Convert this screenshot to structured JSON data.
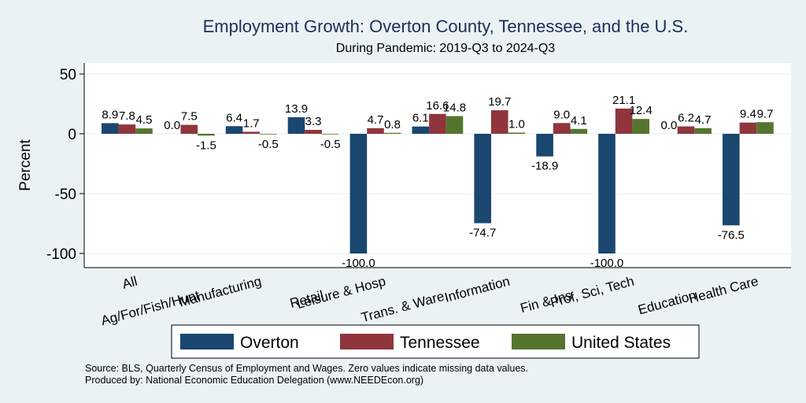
{
  "chart_data": {
    "type": "bar",
    "title": "Employment Growth: Overton County, Tennessee, and the U.S.",
    "subtitle": "During Pandemic: 2019-Q3 to 2024-Q3",
    "xlabel": "",
    "ylabel": "Percent",
    "ylim": [
      -110,
      60
    ],
    "yticks": [
      50,
      0,
      -50,
      -100
    ],
    "ytick_labels": [
      "50",
      "0",
      "-50",
      "-100"
    ],
    "grid": true,
    "legend_position": "bottom",
    "categories": [
      "All",
      "Ag/For/Fish/Hunt",
      "Manufacturing",
      "Retail",
      "Leisure & Hosp",
      "Trans. & Ware.",
      "Information",
      "Fin & Ins",
      "Prof, Sci, Tech",
      "Education",
      "Health Care"
    ],
    "series": [
      {
        "name": "Overton",
        "color": "#1a476f",
        "values": [
          8.9,
          0.0,
          6.4,
          13.9,
          -100.0,
          6.1,
          -74.7,
          -18.9,
          -100.0,
          0.0,
          -76.5
        ],
        "labels": [
          "8.9",
          "0.0",
          "6.4",
          "13.9",
          "-100.0",
          "6.1",
          "-74.7",
          "-18.9",
          "-100.0",
          "0.0",
          "-76.5"
        ]
      },
      {
        "name": "Tennessee",
        "color": "#90353b",
        "values": [
          7.8,
          7.5,
          1.7,
          3.3,
          4.7,
          16.6,
          19.7,
          9.0,
          21.1,
          6.2,
          9.4
        ],
        "labels": [
          "7.8",
          "7.5",
          "1.7",
          "3.3",
          "4.7",
          "16.6",
          "19.7",
          "9.0",
          "21.1",
          "6.2",
          "9.4"
        ]
      },
      {
        "name": "United States",
        "color": "#55752f",
        "values": [
          4.5,
          -1.5,
          -0.5,
          -0.5,
          0.8,
          14.8,
          1.0,
          4.1,
          12.4,
          4.7,
          9.7
        ],
        "labels": [
          "4.5",
          "-1.5",
          "-0.5",
          "-0.5",
          "0.8",
          "14.8",
          "1.0",
          "4.1",
          "12.4",
          "4.7",
          "9.7"
        ]
      }
    ],
    "notes": [
      "Source: BLS, Quarterly Census of Employment and Wages. Zero values indicate missing data values.",
      "Produced by: National Economic Education Delegation (www.NEEDEcon.org)"
    ]
  },
  "colors": {
    "background": "#eaf2f3",
    "plot_background": "#ffffff",
    "title": "#1a2f5a",
    "grid": "#eaf2f3"
  }
}
